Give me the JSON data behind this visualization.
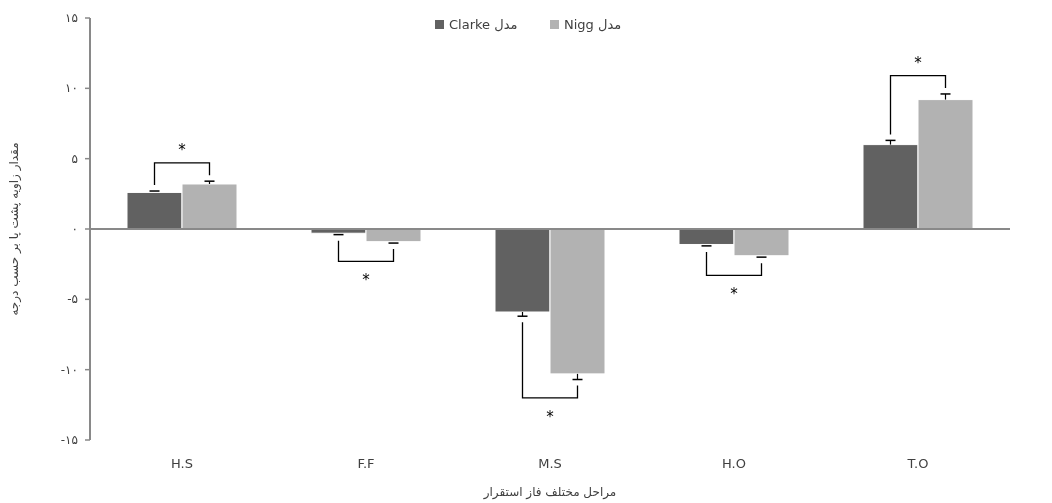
{
  "chart_data": {
    "type": "bar",
    "xlabel": "مراحل مختلف فاز استقرار",
    "ylabel": "مقدار زاویه پشت پا بر حسب درجه",
    "categories": [
      "H.S",
      "F.F",
      "M.S",
      "H.O",
      "T.O"
    ],
    "series": [
      {
        "name": "مدل Clarke",
        "color": "#616161",
        "values": [
          2.6,
          -0.3,
          -5.9,
          -1.1,
          6.0
        ],
        "errors": [
          [
            2.6,
            2.7
          ],
          [
            -0.4,
            -0.3
          ],
          [
            -6.2,
            -5.9
          ],
          [
            -1.2,
            -1.1
          ],
          [
            6.0,
            6.3
          ]
        ]
      },
      {
        "name": "مدل Nigg",
        "color": "#b2b2b2",
        "values": [
          3.2,
          -0.9,
          -10.3,
          -1.9,
          9.2
        ],
        "errors": [
          [
            3.2,
            3.4
          ],
          [
            -1.0,
            -0.9
          ],
          [
            -10.7,
            -10.3
          ],
          [
            -2.0,
            -1.9
          ],
          [
            9.2,
            9.6
          ]
        ]
      }
    ],
    "ylim": [
      -15,
      15
    ],
    "yticks": [
      {
        "value": 15,
        "label": "۱۵"
      },
      {
        "value": 10,
        "label": "۱۰"
      },
      {
        "value": 5,
        "label": "۵"
      },
      {
        "value": 0,
        "label": "۰"
      },
      {
        "value": -5,
        "label": "-۵"
      },
      {
        "value": -10,
        "label": "-۱۰"
      },
      {
        "value": -15,
        "label": "-۱۵"
      }
    ],
    "legend": "top",
    "annotations": [
      "*",
      "*",
      "*",
      "*",
      "*"
    ]
  }
}
